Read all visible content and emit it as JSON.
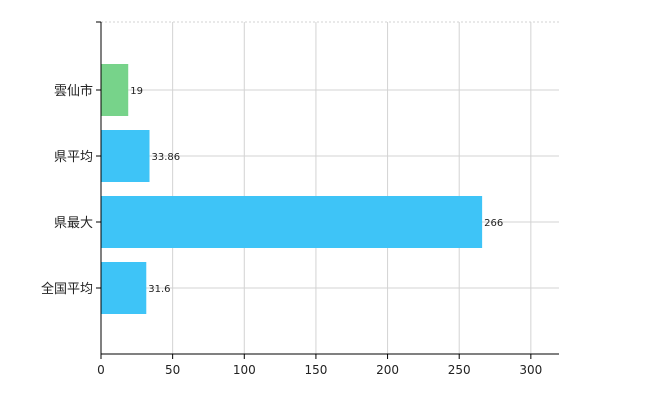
{
  "chart_data": {
    "type": "bar",
    "orientation": "horizontal",
    "categories": [
      "雲仙市",
      "県平均",
      "県最大",
      "全国平均"
    ],
    "values": [
      19,
      33.86,
      266,
      31.6
    ],
    "data_labels": [
      "19",
      "33.86",
      "266",
      "31.6"
    ],
    "colors": [
      "#77d38a",
      "#3ec4f7",
      "#3ec4f7",
      "#3ec4f7"
    ],
    "xlim": [
      0,
      320
    ],
    "x_ticks": [
      0,
      50,
      100,
      150,
      200,
      250,
      300
    ],
    "x_tick_labels": [
      "0",
      "50",
      "100",
      "150",
      "200",
      "250",
      "300"
    ],
    "grid": true,
    "title": "",
    "xlabel": "",
    "ylabel": ""
  }
}
